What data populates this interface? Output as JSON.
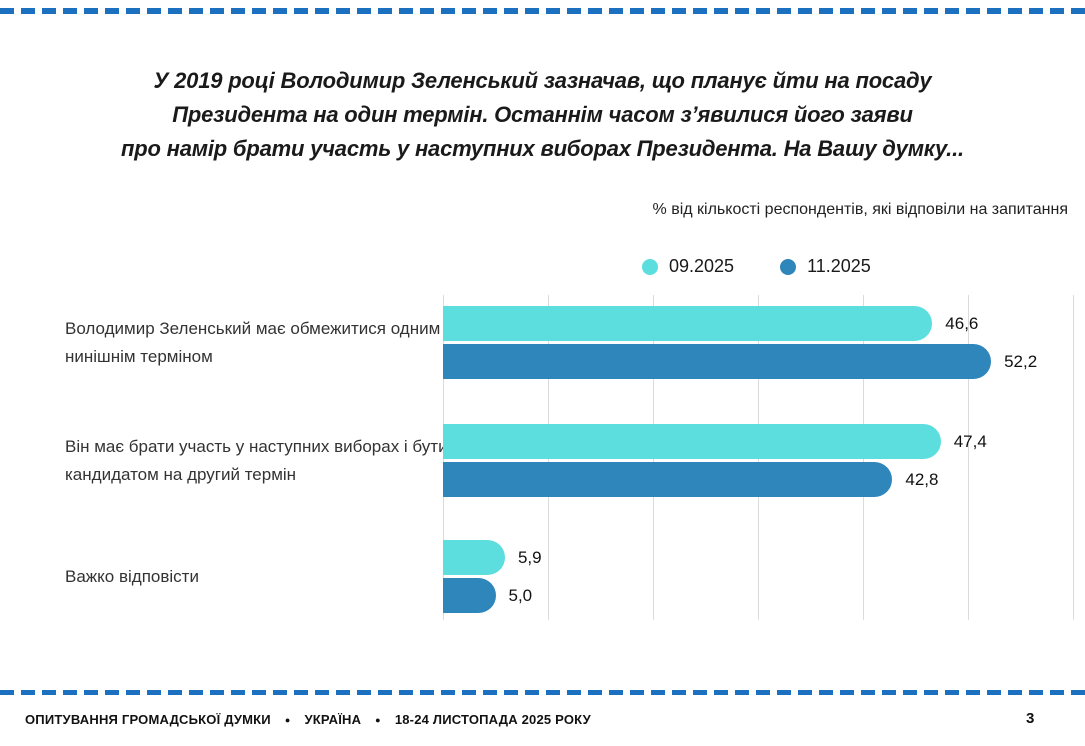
{
  "title": {
    "lines": [
      "У 2019 році Володимир Зеленський зазначав, що планує йти на посаду",
      "Президента на один термін. Останнім часом з’явилися його заяви",
      "про намір брати участь у наступних виборах Президента. На Вашу думку..."
    ]
  },
  "subtitle": "% від кількості респондентів, які відповіли на запитання",
  "legend": [
    {
      "label": "09.2025",
      "color": "#5cdedf"
    },
    {
      "label": "11.2025",
      "color": "#2e86bb"
    }
  ],
  "chart_data": {
    "type": "bar",
    "orientation": "horizontal",
    "title": "У 2019 році Володимир Зеленський зазначав, що планує йти на посаду Президента на один термін. Останнім часом з’явилися його заяви про намір брати участь у наступних виборах Президента. На Вашу думку...",
    "subtitle": "% від кількості респондентів, які відповіли на запитання",
    "categories": [
      "Володимир Зеленський має обмежитися одним нинішнім терміном",
      "Він має брати участь у наступних виборах і бути кандидатом на другий термін",
      "Важко відповісти"
    ],
    "series": [
      {
        "name": "09.2025",
        "color": "#5cdedf",
        "values": [
          46.6,
          47.4,
          5.9
        ],
        "labels": [
          "46,6",
          "47,4",
          "5,9"
        ]
      },
      {
        "name": "11.2025",
        "color": "#2e86bb",
        "values": [
          52.2,
          42.8,
          5.0
        ],
        "labels": [
          "52,2",
          "42,8",
          "5,0"
        ]
      }
    ],
    "xlim": [
      0,
      60
    ],
    "grid": "vertical gridlines every 10 units, no axis tick labels",
    "legend_position": "top center above plot"
  },
  "footer": {
    "survey": "ОПИТУВАННЯ ГРОМАДСЬКОЇ ДУМКИ",
    "country": "УКРАЇНА",
    "date": "18-24 ЛИСТОПАДА 2025 РОКУ",
    "separator": "●",
    "page": "3"
  },
  "colors": {
    "dashed_border": "#1b70c0",
    "series_09_2025": "#5cdedf",
    "series_11_2025": "#2e86bb",
    "gridline": "#dbdbdb",
    "text": "#1a1a1a"
  }
}
